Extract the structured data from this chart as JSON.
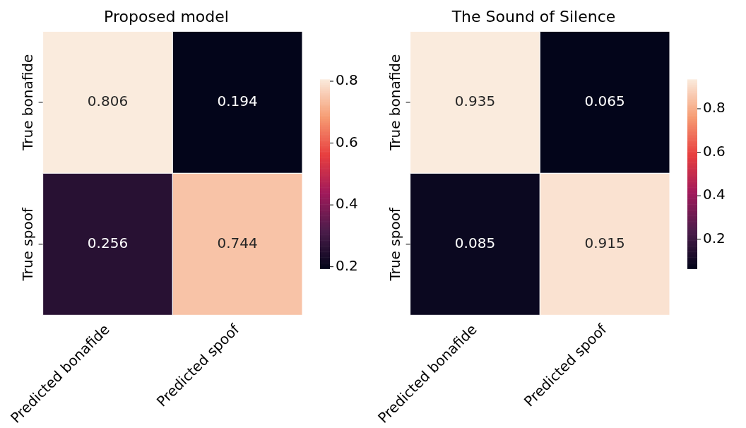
{
  "chart_data": [
    {
      "type": "heatmap",
      "title": "Proposed model",
      "categories": [
        "Predicted bonafide",
        "Predicted spoof"
      ],
      "y_categories": [
        "True bonafide",
        "True spoof"
      ],
      "cells": [
        [
          0.806,
          0.194
        ],
        [
          0.256,
          0.744
        ]
      ],
      "clim": [
        0.194,
        0.806
      ],
      "cticks": [
        0.2,
        0.4,
        0.6,
        0.8
      ],
      "data_labels": true
    },
    {
      "type": "heatmap",
      "title": "The Sound of Silence",
      "categories": [
        "Predicted bonafide",
        "Predicted spoof"
      ],
      "y_categories": [
        "True bonafide",
        "True spoof"
      ],
      "cells": [
        [
          0.935,
          0.065
        ],
        [
          0.085,
          0.915
        ]
      ],
      "clim": [
        0.065,
        0.935
      ],
      "cticks": [
        0.2,
        0.4,
        0.6,
        0.8
      ],
      "data_labels": true
    }
  ]
}
